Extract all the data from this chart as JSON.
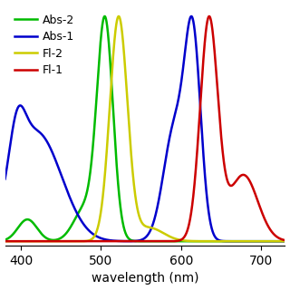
{
  "title": "",
  "xlabel": "wavelength (nm)",
  "ylabel": "",
  "xlim": [
    380,
    730
  ],
  "ylim": [
    -0.02,
    1.05
  ],
  "legend": [
    "Abs-2",
    "Abs-1",
    "Fl-2",
    "Fl-1"
  ],
  "legend_colors": [
    "#00bb00",
    "#0000cc",
    "#cccc00",
    "#cc0000"
  ],
  "background_color": "#ffffff",
  "linewidth": 1.8,
  "xticks": [
    400,
    500,
    600,
    700
  ]
}
